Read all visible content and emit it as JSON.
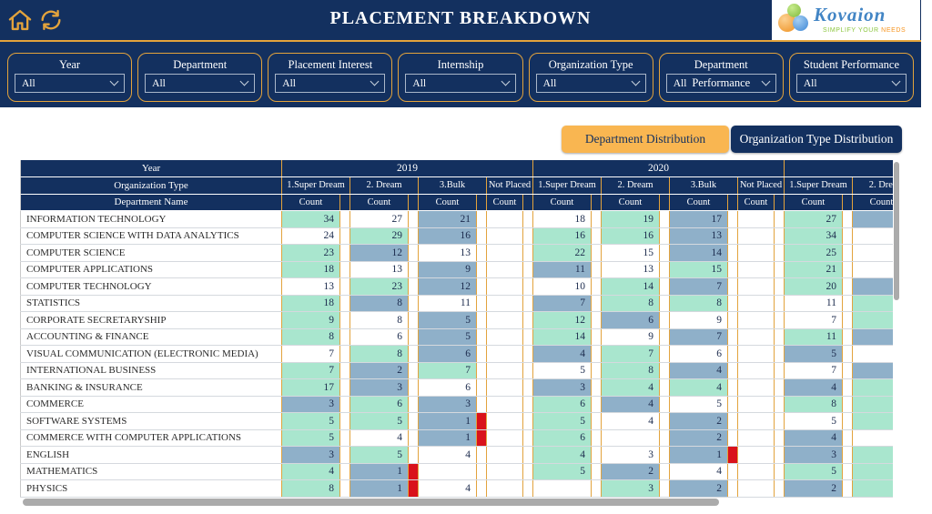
{
  "header": {
    "title": "PLACEMENT BREAKDOWN",
    "logo": {
      "brand": "Kovaion",
      "tagline_green": "SIMPLIFY YOUR",
      "tagline_orange": "NEEDS"
    }
  },
  "filters": [
    {
      "label": "Year",
      "value": "All"
    },
    {
      "label": "Department",
      "value": "All"
    },
    {
      "label": "Placement Interest",
      "value": "All"
    },
    {
      "label": "Internship",
      "value": "All"
    },
    {
      "label": "Organization Type",
      "value": "All"
    },
    {
      "label": "Department Performance",
      "value": "All"
    },
    {
      "label": "Student Performance",
      "value": "All"
    }
  ],
  "tabs": [
    {
      "label": "Department Distribution",
      "active": true
    },
    {
      "label": "Organization Type Distribution",
      "active": false
    }
  ],
  "colors": {
    "navy": "#13305f",
    "orange": "#e3a33c",
    "tab_active": "#f9b651",
    "teal": "#a9e6ce",
    "steel": "#8fb0c9",
    "red": "#d9121b",
    "scrollbar": "#ababab"
  },
  "table": {
    "row_header_labels": [
      "Year",
      "Organization Type",
      "Department Name"
    ],
    "count_label": "Count",
    "year_groups": [
      {
        "year": "2019",
        "org_types": [
          "1.Super Dream",
          "2. Dream",
          "3.Bulk",
          "Not Placed"
        ]
      },
      {
        "year": "2020",
        "org_types": [
          "1.Super Dream",
          "2. Dream",
          "3.Bulk",
          "Not Placed"
        ]
      },
      {
        "year": "",
        "org_types": [
          "1.Super Dream",
          "2. Dream"
        ]
      }
    ],
    "rows": [
      {
        "dept": "INFORMATION TECHNOLOGY",
        "cells": [
          {
            "v": 34,
            "bg": "teal"
          },
          {
            "v": 27
          },
          {
            "v": 21,
            "bg": "steel"
          },
          {},
          {
            "v": 18
          },
          {
            "v": 19,
            "bg": "teal"
          },
          {
            "v": 17,
            "bg": "steel"
          },
          {},
          {
            "v": 27,
            "bg": "teal"
          },
          {
            "bg": "steel"
          }
        ]
      },
      {
        "dept": "COMPUTER SCIENCE WITH DATA ANALYTICS",
        "cells": [
          {
            "v": 24
          },
          {
            "v": 29,
            "bg": "teal"
          },
          {
            "v": 16,
            "bg": "steel"
          },
          {},
          {
            "v": 16,
            "bg": "teal"
          },
          {
            "v": 16,
            "bg": "teal"
          },
          {
            "v": 13,
            "bg": "steel"
          },
          {},
          {
            "v": 34,
            "bg": "teal"
          },
          {}
        ]
      },
      {
        "dept": "COMPUTER SCIENCE",
        "cells": [
          {
            "v": 23,
            "bg": "teal"
          },
          {
            "v": 12,
            "bg": "steel"
          },
          {
            "v": 13
          },
          {},
          {
            "v": 22,
            "bg": "teal"
          },
          {
            "v": 15
          },
          {
            "v": 14,
            "bg": "steel"
          },
          {},
          {
            "v": 25,
            "bg": "teal"
          },
          {}
        ]
      },
      {
        "dept": "COMPUTER APPLICATIONS",
        "cells": [
          {
            "v": 18,
            "bg": "teal"
          },
          {
            "v": 13
          },
          {
            "v": 9,
            "bg": "steel"
          },
          {},
          {
            "v": 11,
            "bg": "steel"
          },
          {
            "v": 13
          },
          {
            "v": 15,
            "bg": "teal"
          },
          {},
          {
            "v": 21,
            "bg": "teal"
          },
          {}
        ]
      },
      {
        "dept": "COMPUTER TECHNOLOGY",
        "cells": [
          {
            "v": 13
          },
          {
            "v": 23,
            "bg": "teal"
          },
          {
            "v": 12,
            "bg": "steel"
          },
          {},
          {
            "v": 10
          },
          {
            "v": 14,
            "bg": "teal"
          },
          {
            "v": 7,
            "bg": "steel"
          },
          {},
          {
            "v": 20,
            "bg": "teal"
          },
          {
            "bg": "steel"
          }
        ]
      },
      {
        "dept": "STATISTICS",
        "cells": [
          {
            "v": 18,
            "bg": "teal"
          },
          {
            "v": 8,
            "bg": "steel"
          },
          {
            "v": 11
          },
          {},
          {
            "v": 7,
            "bg": "steel"
          },
          {
            "v": 8,
            "bg": "teal"
          },
          {
            "v": 8,
            "bg": "teal"
          },
          {},
          {
            "v": 11
          },
          {
            "bg": "teal"
          }
        ]
      },
      {
        "dept": "CORPORATE SECRETARYSHIP",
        "cells": [
          {
            "v": 9,
            "bg": "teal"
          },
          {
            "v": 8
          },
          {
            "v": 5,
            "bg": "steel"
          },
          {},
          {
            "v": 12,
            "bg": "teal"
          },
          {
            "v": 6,
            "bg": "steel"
          },
          {
            "v": 9
          },
          {},
          {
            "v": 7
          },
          {
            "bg": "teal"
          }
        ]
      },
      {
        "dept": "ACCOUNTING & FINANCE",
        "cells": [
          {
            "v": 8,
            "bg": "teal"
          },
          {
            "v": 6
          },
          {
            "v": 5,
            "bg": "steel"
          },
          {},
          {
            "v": 14,
            "bg": "teal"
          },
          {
            "v": 9
          },
          {
            "v": 7,
            "bg": "steel"
          },
          {},
          {
            "v": 11,
            "bg": "teal"
          },
          {
            "bg": "steel"
          }
        ]
      },
      {
        "dept": "VISUAL COMMUNICATION (ELECTRONIC MEDIA)",
        "cells": [
          {
            "v": 7
          },
          {
            "v": 8,
            "bg": "teal"
          },
          {
            "v": 6,
            "bg": "steel"
          },
          {},
          {
            "v": 4,
            "bg": "steel"
          },
          {
            "v": 7,
            "bg": "teal"
          },
          {
            "v": 6
          },
          {},
          {
            "v": 5,
            "bg": "steel"
          },
          {}
        ]
      },
      {
        "dept": "INTERNATIONAL BUSINESS",
        "cells": [
          {
            "v": 7,
            "bg": "teal"
          },
          {
            "v": 2,
            "bg": "steel"
          },
          {
            "v": 7,
            "bg": "teal"
          },
          {},
          {
            "v": 5
          },
          {
            "v": 8,
            "bg": "teal"
          },
          {
            "v": 4,
            "bg": "steel"
          },
          {},
          {
            "v": 7
          },
          {
            "bg": "steel"
          }
        ]
      },
      {
        "dept": "BANKING & INSURANCE",
        "cells": [
          {
            "v": 17,
            "bg": "teal"
          },
          {
            "v": 3,
            "bg": "steel"
          },
          {
            "v": 6
          },
          {},
          {
            "v": 3,
            "bg": "steel"
          },
          {
            "v": 4,
            "bg": "teal"
          },
          {
            "v": 4,
            "bg": "teal"
          },
          {},
          {
            "v": 4,
            "bg": "steel"
          },
          {
            "bg": "teal"
          }
        ]
      },
      {
        "dept": "COMMERCE",
        "cells": [
          {
            "v": 3,
            "bg": "steel"
          },
          {
            "v": 6,
            "bg": "teal"
          },
          {
            "v": 3,
            "bg": "steel"
          },
          {},
          {
            "v": 6,
            "bg": "teal"
          },
          {
            "v": 4,
            "bg": "steel"
          },
          {
            "v": 5
          },
          {},
          {
            "v": 8,
            "bg": "teal"
          },
          {
            "bg": "teal"
          }
        ]
      },
      {
        "dept": "SOFTWARE SYSTEMS",
        "cells": [
          {
            "v": 5,
            "bg": "teal"
          },
          {
            "v": 5,
            "bg": "teal"
          },
          {
            "v": 1,
            "bg": "steel",
            "flag": true
          },
          {},
          {
            "v": 5,
            "bg": "teal"
          },
          {
            "v": 4
          },
          {
            "v": 2,
            "bg": "steel"
          },
          {},
          {
            "v": 5
          },
          {
            "bg": "teal"
          }
        ]
      },
      {
        "dept": "COMMERCE WITH COMPUTER APPLICATIONS",
        "cells": [
          {
            "v": 5,
            "bg": "teal"
          },
          {
            "v": 4
          },
          {
            "v": 1,
            "bg": "steel",
            "flag": true
          },
          {},
          {
            "v": 6,
            "bg": "teal"
          },
          {},
          {
            "v": 2,
            "bg": "steel"
          },
          {},
          {
            "v": 4,
            "bg": "steel"
          },
          {}
        ]
      },
      {
        "dept": "ENGLISH",
        "cells": [
          {
            "v": 3,
            "bg": "steel"
          },
          {
            "v": 5,
            "bg": "teal"
          },
          {
            "v": 4
          },
          {},
          {
            "v": 4,
            "bg": "teal"
          },
          {
            "v": 3
          },
          {
            "v": 1,
            "bg": "steel",
            "flag": true
          },
          {},
          {
            "v": 3,
            "bg": "steel"
          },
          {
            "bg": "teal"
          }
        ]
      },
      {
        "dept": "MATHEMATICS",
        "cells": [
          {
            "v": 4,
            "bg": "teal"
          },
          {
            "v": 1,
            "bg": "steel",
            "flag": true
          },
          {},
          {},
          {
            "v": 5,
            "bg": "teal"
          },
          {
            "v": 2,
            "bg": "steel"
          },
          {
            "v": 4
          },
          {},
          {
            "v": 5,
            "bg": "teal"
          },
          {
            "bg": "teal"
          }
        ]
      },
      {
        "dept": "PHYSICS",
        "cells": [
          {
            "v": 8,
            "bg": "teal"
          },
          {
            "v": 1,
            "bg": "steel",
            "flag": true
          },
          {
            "v": 4
          },
          {},
          {},
          {
            "v": 3,
            "bg": "teal"
          },
          {
            "v": 2,
            "bg": "steel"
          },
          {},
          {
            "v": 2,
            "bg": "steel"
          },
          {
            "bg": "teal"
          }
        ]
      }
    ]
  }
}
